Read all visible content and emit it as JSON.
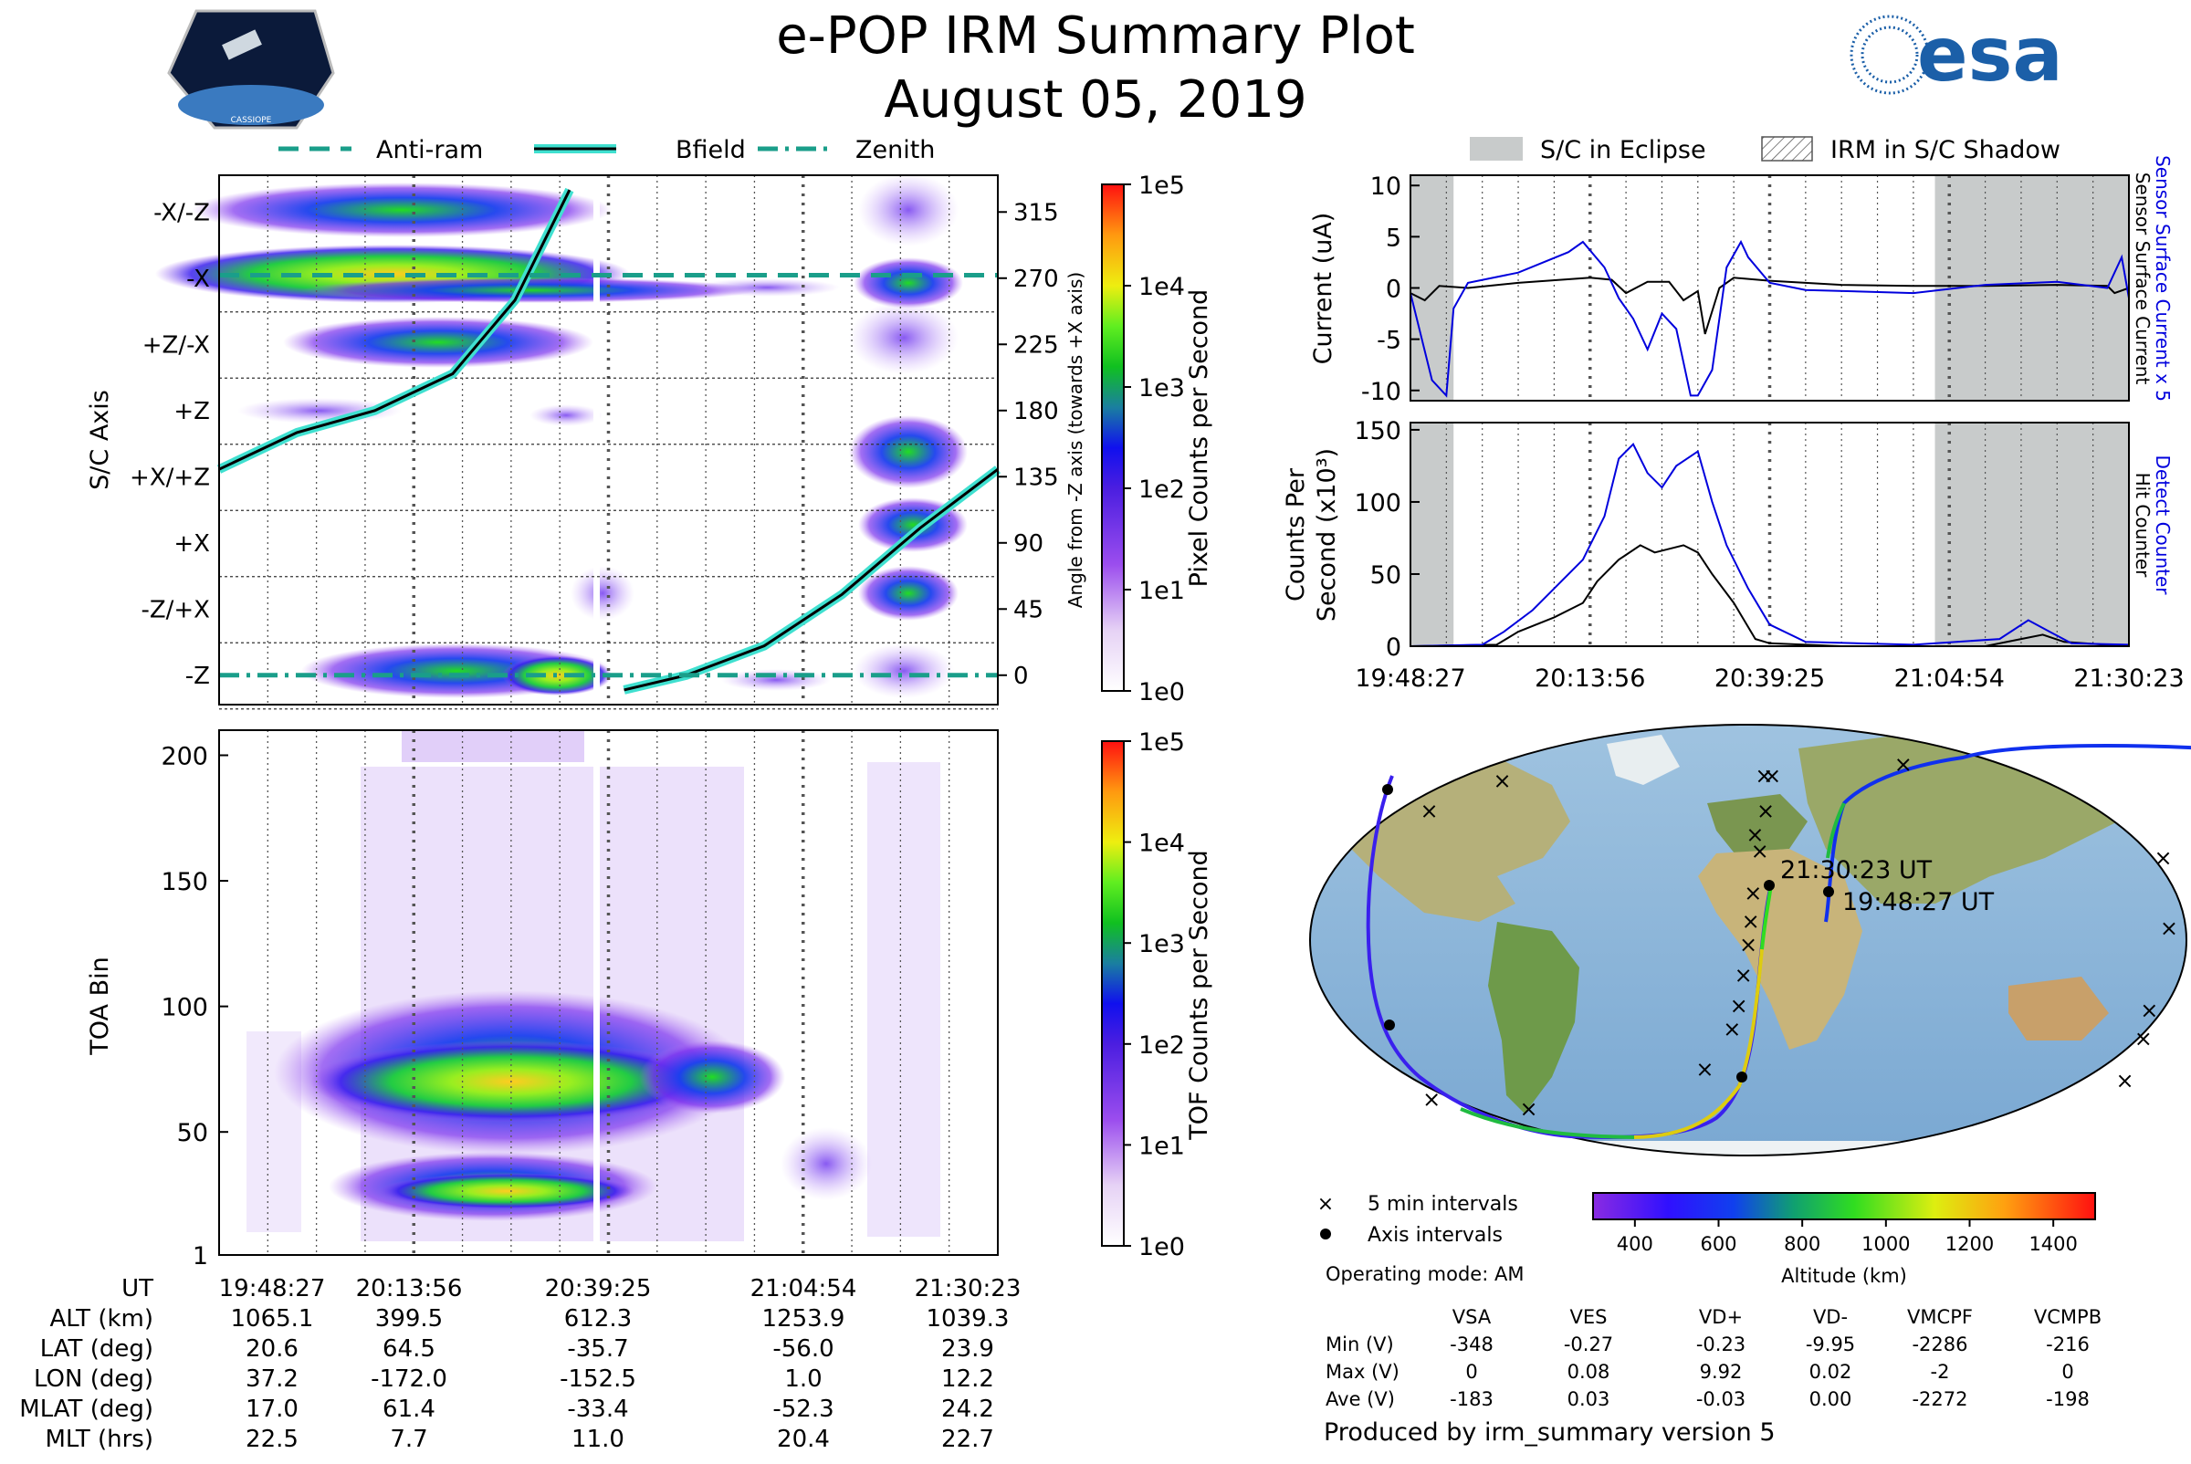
{
  "title": "e-POP IRM Summary Plot",
  "date": "August 05, 2019",
  "logo_left_text": "CASSIOPE",
  "logo_right_text": "esa",
  "legend_top": [
    "Anti-ram",
    "Bfield",
    "Zenith"
  ],
  "legend_right": [
    "S/C in Eclipse",
    "IRM in S/C Shadow"
  ],
  "colors": {
    "antiram": "#1a9e8a",
    "bfield_glow": "#40e0d0",
    "line_black": "#000000",
    "eclipse": "#c8cbcb",
    "blue_trace": "#0000dd",
    "grid": "#555555"
  },
  "time_ticks": [
    "19:48:27",
    "20:13:56",
    "20:39:25",
    "21:04:54",
    "21:30:23"
  ],
  "chart_data": [
    {
      "type": "heatmap",
      "name": "sc_axis_panel",
      "ylabel": "S/C Axis",
      "yaxis_left_labels": [
        "-X/-Z",
        "-X",
        "+Z/-X",
        "+Z",
        "+X/+Z",
        "+X",
        "-Z/+X",
        "-Z"
      ],
      "yaxis_right_label": "Angle from -Z axis (towards +X axis)",
      "yaxis_right_ticks": [
        315,
        270,
        225,
        180,
        135,
        90,
        45,
        0
      ],
      "colorbar_label": "Pixel Counts per Second",
      "colorbar_ticks": [
        "1e5",
        "1e4",
        "1e3",
        "1e2",
        "1e1",
        "1e0"
      ],
      "antiram_angle": 272,
      "zenith_angle": 0,
      "bfield_curve_1": [
        [
          0.0,
          140
        ],
        [
          0.1,
          165
        ],
        [
          0.2,
          180
        ],
        [
          0.3,
          205
        ],
        [
          0.38,
          255
        ],
        [
          0.45,
          330
        ]
      ],
      "bfield_curve_2": [
        [
          0.52,
          -10
        ],
        [
          0.6,
          0
        ],
        [
          0.7,
          20
        ],
        [
          0.8,
          55
        ],
        [
          0.9,
          100
        ],
        [
          1.0,
          140
        ]
      ]
    },
    {
      "type": "heatmap",
      "name": "toa_panel",
      "ylabel": "TOA Bin",
      "yticks": [
        1,
        50,
        100,
        150,
        200
      ],
      "ylim": [
        1,
        210
      ],
      "colorbar_label": "TOF Counts per Second",
      "colorbar_ticks": [
        "1e5",
        "1e4",
        "1e3",
        "1e2",
        "1e1",
        "1e0"
      ]
    },
    {
      "type": "line",
      "name": "current_panel",
      "ylabel": "Current (uA)",
      "yticks": [
        10,
        5,
        0,
        -5,
        -10
      ],
      "ylim": [
        -11,
        11
      ],
      "right_label_blue": "Sensor Surface Current x 5",
      "right_label_black": "Sensor Surface Current",
      "eclipse": [
        [
          0.0,
          0.06
        ],
        [
          0.73,
          1.0
        ]
      ],
      "black": [
        [
          0,
          -0.5
        ],
        [
          0.02,
          -1.2
        ],
        [
          0.04,
          0.2
        ],
        [
          0.08,
          0
        ],
        [
          0.15,
          0.5
        ],
        [
          0.25,
          1
        ],
        [
          0.28,
          0.8
        ],
        [
          0.3,
          -0.5
        ],
        [
          0.33,
          0.6
        ],
        [
          0.36,
          0.6
        ],
        [
          0.38,
          -1.2
        ],
        [
          0.4,
          -0.3
        ],
        [
          0.41,
          -4.5
        ],
        [
          0.43,
          0
        ],
        [
          0.45,
          1
        ],
        [
          0.5,
          0.7
        ],
        [
          0.6,
          0.3
        ],
        [
          0.7,
          0.2
        ],
        [
          0.8,
          0.2
        ],
        [
          0.9,
          0.3
        ],
        [
          0.97,
          0.2
        ],
        [
          0.98,
          -0.5
        ],
        [
          1,
          0
        ]
      ],
      "blue": [
        [
          0,
          -0.5
        ],
        [
          0.03,
          -9
        ],
        [
          0.05,
          -10.5
        ],
        [
          0.06,
          -2
        ],
        [
          0.08,
          0.5
        ],
        [
          0.15,
          1.5
        ],
        [
          0.22,
          3.5
        ],
        [
          0.24,
          4.5
        ],
        [
          0.27,
          2
        ],
        [
          0.29,
          -1
        ],
        [
          0.31,
          -3
        ],
        [
          0.33,
          -6
        ],
        [
          0.35,
          -2.5
        ],
        [
          0.37,
          -4
        ],
        [
          0.39,
          -10.5
        ],
        [
          0.4,
          -10.5
        ],
        [
          0.42,
          -8
        ],
        [
          0.44,
          2
        ],
        [
          0.46,
          4.5
        ],
        [
          0.47,
          3
        ],
        [
          0.5,
          0.5
        ],
        [
          0.55,
          -0.2
        ],
        [
          0.7,
          -0.5
        ],
        [
          0.8,
          0.3
        ],
        [
          0.9,
          0.6
        ],
        [
          0.97,
          0
        ],
        [
          0.99,
          3
        ],
        [
          1,
          -1
        ]
      ]
    },
    {
      "type": "line",
      "name": "counts_panel",
      "ylabel": "Counts Per Second (x10^3)",
      "yticks": [
        150,
        100,
        50,
        0
      ],
      "ylim": [
        0,
        155
      ],
      "right_label_blue": "Detect Counter",
      "right_label_black": "Hit Counter",
      "eclipse": [
        [
          0.0,
          0.06
        ],
        [
          0.73,
          1.0
        ]
      ],
      "xtick_labels": [
        "19:48:27",
        "20:13:56",
        "20:39:25",
        "21:04:54",
        "21:30:23"
      ],
      "black": [
        [
          0,
          0
        ],
        [
          0.12,
          1
        ],
        [
          0.15,
          10
        ],
        [
          0.2,
          20
        ],
        [
          0.24,
          30
        ],
        [
          0.26,
          45
        ],
        [
          0.29,
          60
        ],
        [
          0.32,
          70
        ],
        [
          0.34,
          65
        ],
        [
          0.38,
          70
        ],
        [
          0.4,
          65
        ],
        [
          0.42,
          50
        ],
        [
          0.45,
          30
        ],
        [
          0.48,
          5
        ],
        [
          0.5,
          2
        ],
        [
          0.6,
          0
        ],
        [
          0.8,
          0
        ],
        [
          0.85,
          5
        ],
        [
          0.88,
          8
        ],
        [
          0.91,
          3
        ],
        [
          1,
          0
        ]
      ],
      "blue": [
        [
          0,
          0
        ],
        [
          0.1,
          1
        ],
        [
          0.13,
          10
        ],
        [
          0.17,
          25
        ],
        [
          0.2,
          40
        ],
        [
          0.24,
          60
        ],
        [
          0.27,
          90
        ],
        [
          0.29,
          130
        ],
        [
          0.31,
          140
        ],
        [
          0.33,
          120
        ],
        [
          0.35,
          110
        ],
        [
          0.37,
          125
        ],
        [
          0.4,
          135
        ],
        [
          0.42,
          100
        ],
        [
          0.44,
          70
        ],
        [
          0.47,
          40
        ],
        [
          0.5,
          15
        ],
        [
          0.55,
          3
        ],
        [
          0.7,
          1
        ],
        [
          0.82,
          5
        ],
        [
          0.86,
          18
        ],
        [
          0.89,
          10
        ],
        [
          0.92,
          2
        ],
        [
          1,
          1
        ]
      ]
    },
    {
      "type": "scatter",
      "name": "orbit_map",
      "marker_legend": [
        "5 min intervals",
        "Axis intervals"
      ],
      "label_start": "21:30:23 UT",
      "label_end": "19:48:27 UT",
      "colorbar_label": "Altitude (km)",
      "colorbar_ticks": [
        400,
        600,
        800,
        1000,
        1200,
        1400
      ],
      "crosses_lonlat": [
        [
          40,
          70
        ],
        [
          37,
          38
        ],
        [
          35,
          45
        ],
        [
          40,
          55
        ],
        [
          44,
          70
        ],
        [
          113,
          75
        ],
        [
          -90,
          68
        ],
        [
          -115,
          55
        ],
        [
          -150,
          35
        ],
        [
          -155,
          5
        ],
        [
          -158,
          -30
        ],
        [
          -155,
          -42
        ],
        [
          -150,
          -60
        ],
        [
          -125,
          -68
        ],
        [
          -80,
          -72
        ],
        [
          12,
          -55
        ],
        [
          25,
          -38
        ],
        [
          28,
          -28
        ],
        [
          30,
          -15
        ],
        [
          32,
          -2
        ],
        [
          33,
          8
        ],
        [
          34,
          20
        ]
      ]
    }
  ],
  "operating_mode": "Operating mode: AM",
  "voltage_table": {
    "headers": [
      "VSA",
      "VES",
      "VD+",
      "VD-",
      "VMCPF",
      "VCMPB"
    ],
    "rows": [
      {
        "label": "Min (V)",
        "values": [
          "-348",
          "-0.27",
          "-0.23",
          "-9.95",
          "-2286",
          "-216"
        ]
      },
      {
        "label": "Max (V)",
        "values": [
          "0",
          "0.08",
          "9.92",
          "0.02",
          "-2",
          "0"
        ]
      },
      {
        "label": "Ave (V)",
        "values": [
          "-183",
          "0.03",
          "-0.03",
          "0.00",
          "-2272",
          "-198"
        ]
      }
    ]
  },
  "footer": "Produced by irm_summary version 5",
  "ephemeris": {
    "rows": [
      {
        "label": "UT",
        "values": [
          "19:48:27",
          "20:13:56",
          "20:39:25",
          "21:04:54",
          "21:30:23"
        ]
      },
      {
        "label": "ALT (km)",
        "values": [
          "1065.1",
          "399.5",
          "612.3",
          "1253.9",
          "1039.3"
        ]
      },
      {
        "label": "LAT (deg)",
        "values": [
          "20.6",
          "64.5",
          "-35.7",
          "-56.0",
          "23.9"
        ]
      },
      {
        "label": "LON (deg)",
        "values": [
          "37.2",
          "-172.0",
          "-152.5",
          "1.0",
          "12.2"
        ]
      },
      {
        "label": "MLAT (deg)",
        "values": [
          "17.0",
          "61.4",
          "-33.4",
          "-52.3",
          "24.2"
        ]
      },
      {
        "label": "MLT (hrs)",
        "values": [
          "22.5",
          "7.7",
          "11.0",
          "20.4",
          "22.7"
        ]
      }
    ]
  }
}
